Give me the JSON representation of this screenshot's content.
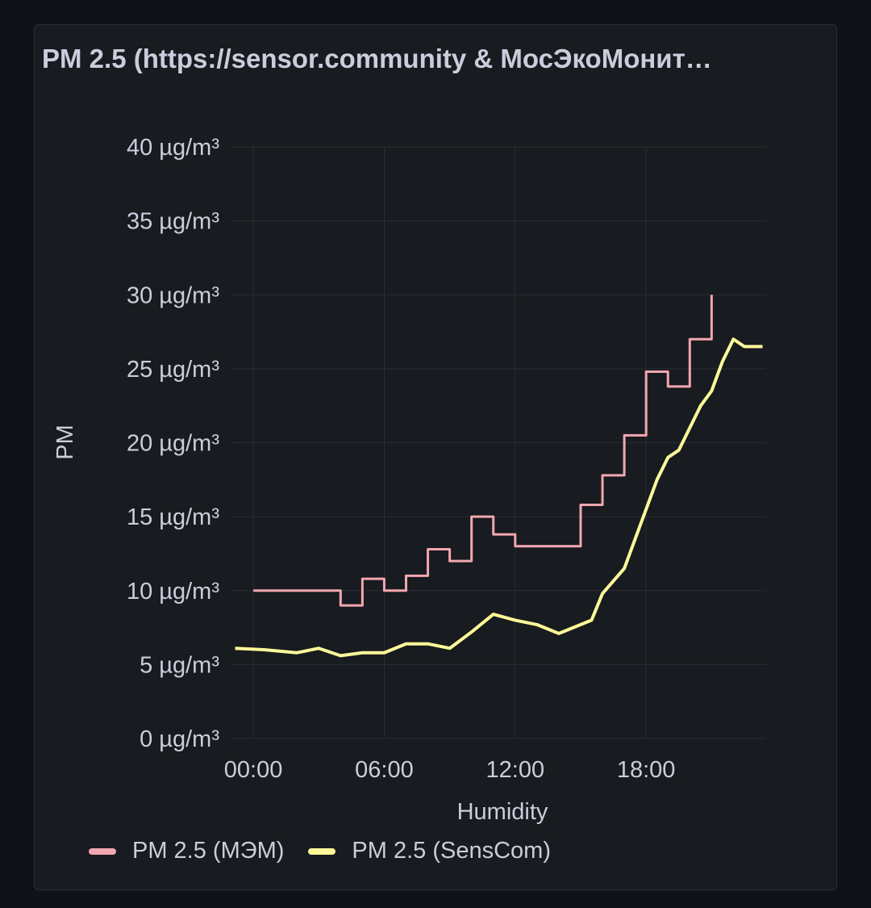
{
  "panel": {
    "title": "PM 2.5 (https://sensor.community & МосЭкоМонит…"
  },
  "chart_data": {
    "type": "line",
    "title": "PM 2.5 (https://sensor.community & МосЭкоМонит…",
    "xlabel": "Humidity",
    "ylabel": "PM",
    "y_unit": "µg/m³",
    "ylim": [
      0,
      40
    ],
    "xlim_hours": [
      -1.0,
      23.5
    ],
    "x_ticks": [
      "00:00",
      "06:00",
      "12:00",
      "18:00"
    ],
    "y_ticks": [
      "0 µg/m³",
      "5 µg/m³",
      "10 µg/m³",
      "15 µg/m³",
      "20 µg/m³",
      "25 µg/m³",
      "30 µg/m³",
      "35 µg/m³",
      "40 µg/m³"
    ],
    "grid": true,
    "legend_position": "bottom-left",
    "series": [
      {
        "name": "PM 2.5 (МЭМ)",
        "color": "#f2a7b0",
        "step": true,
        "x": [
          "00:00",
          "04:00",
          "05:00",
          "06:00",
          "07:00",
          "08:00",
          "09:00",
          "10:00",
          "11:00",
          "12:00",
          "15:00",
          "16:00",
          "17:00",
          "18:00",
          "19:00",
          "20:00",
          "21:00"
        ],
        "y": [
          10.0,
          9.0,
          10.8,
          10.0,
          11.0,
          12.8,
          12.0,
          15.0,
          13.8,
          13.0,
          15.8,
          17.8,
          20.5,
          24.8,
          23.8,
          27.0,
          30.0
        ]
      },
      {
        "name": "PM 2.5 (SensCom)",
        "color": "#fff899",
        "step": false,
        "x": [
          "-00:50",
          "00:30",
          "02:00",
          "03:00",
          "04:00",
          "05:00",
          "06:00",
          "07:00",
          "08:00",
          "09:00",
          "10:00",
          "11:00",
          "12:00",
          "13:00",
          "14:00",
          "14:30",
          "15:30",
          "16:00",
          "17:00",
          "17:30",
          "18:00",
          "18:30",
          "19:00",
          "19:30",
          "20:00",
          "20:30",
          "21:00",
          "21:30",
          "22:00",
          "22:30",
          "23:00",
          "23:20"
        ],
        "y": [
          6.1,
          6.0,
          5.8,
          6.1,
          5.6,
          5.8,
          5.8,
          6.4,
          6.4,
          6.1,
          7.2,
          8.4,
          8.0,
          7.7,
          7.1,
          7.4,
          8.0,
          9.8,
          11.5,
          13.5,
          15.5,
          17.5,
          19.0,
          19.5,
          21.0,
          22.5,
          23.5,
          25.5,
          27.0,
          26.5,
          26.5,
          26.5
        ]
      }
    ]
  },
  "legend": {
    "items": [
      {
        "label": "PM 2.5 (МЭМ)",
        "color": "#f2a7b0"
      },
      {
        "label": "PM 2.5 (SensCom)",
        "color": "#fff899"
      }
    ]
  }
}
